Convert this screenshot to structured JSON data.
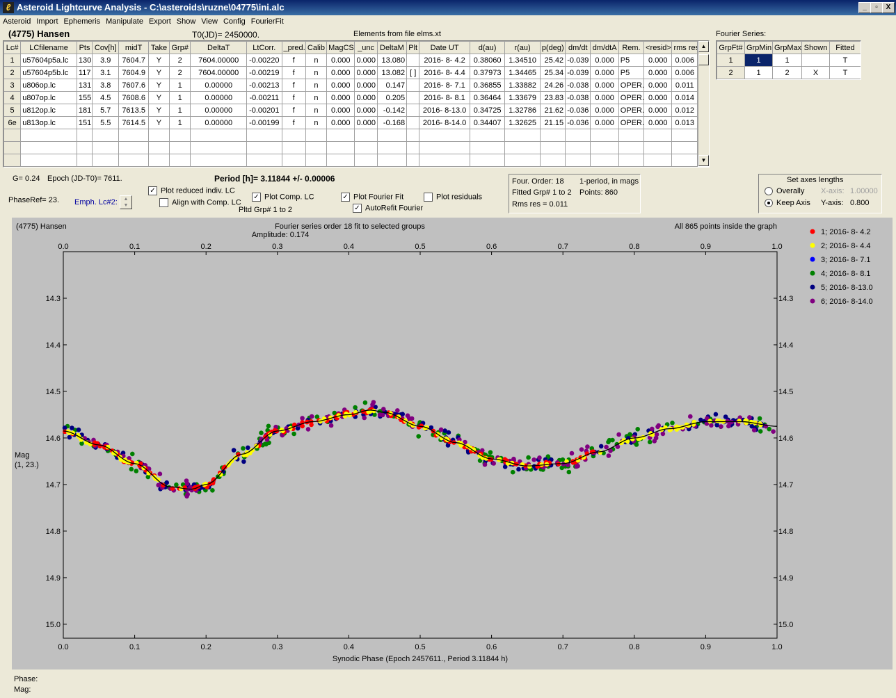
{
  "window": {
    "title": "Asteroid Lightcurve Analysis - C:\\asteroids\\ruzne\\04775\\ini.alc",
    "icon": "app-icon",
    "min": "_",
    "max": "▫",
    "close": "X"
  },
  "menu": [
    "Asteroid",
    "Import",
    "Ephemeris",
    "Manipulate",
    "Export",
    "Show",
    "View",
    "Config",
    "FourierFit"
  ],
  "header": {
    "asteroid": "(4775) Hansen",
    "t0": "T0(JD)= 2450000.",
    "elements": "Elements from file elms.xt"
  },
  "lc_table": {
    "columns": [
      "Lc#",
      "LCfilename",
      "Pts",
      "Cov[h]",
      "midT",
      "Take",
      "Grp#",
      "DeltaT",
      "LtCorr.",
      "_pred.",
      "Calib",
      "MagCS",
      "_unc",
      "DeltaM",
      "Plt",
      "Date UT",
      "d(au)",
      "r(au)",
      "p(deg)",
      "dm/dt",
      "dm/dtA",
      "Rem.",
      "<resid>",
      "rms res"
    ],
    "rows": [
      [
        "1",
        "u57604p5a.lc",
        "130",
        "3.9",
        "7604.7",
        "Y",
        "2",
        "7604.00000",
        "-0.00220",
        "f",
        "n",
        "0.000",
        "0.000",
        "13.080",
        "",
        "2016- 8- 4.2",
        "0.38060",
        "1.34510",
        "25.42",
        "-0.039",
        "0.000",
        "P5",
        "0.000",
        "0.006"
      ],
      [
        "2",
        "u57604p5b.lc",
        "117",
        "3.1",
        "7604.9",
        "Y",
        "2",
        "7604.00000",
        "-0.00219",
        "f",
        "n",
        "0.000",
        "0.000",
        "13.082",
        "[ ]",
        "2016- 8- 4.4",
        "0.37973",
        "1.34465",
        "25.34",
        "-0.039",
        "0.000",
        "P5",
        "0.000",
        "0.006"
      ],
      [
        "3",
        "u806op.lc",
        "131",
        "3.8",
        "7607.6",
        "Y",
        "1",
        "0.00000",
        "-0.00213",
        "f",
        "n",
        "0.000",
        "0.000",
        "0.147",
        "",
        "2016- 8- 7.1",
        "0.36855",
        "1.33882",
        "24.26",
        "-0.038",
        "0.000",
        "OPER.",
        "0.000",
        "0.011"
      ],
      [
        "4",
        "u807op.lc",
        "155",
        "4.5",
        "7608.6",
        "Y",
        "1",
        "0.00000",
        "-0.00211",
        "f",
        "n",
        "0.000",
        "0.000",
        "0.205",
        "",
        "2016- 8- 8.1",
        "0.36464",
        "1.33679",
        "23.83",
        "-0.038",
        "0.000",
        "OPER.",
        "0.000",
        "0.014"
      ],
      [
        "5",
        "u812op.lc",
        "181",
        "5.7",
        "7613.5",
        "Y",
        "1",
        "0.00000",
        "-0.00201",
        "f",
        "n",
        "0.000",
        "0.000",
        "-0.142",
        "",
        "2016- 8-13.0",
        "0.34725",
        "1.32786",
        "21.62",
        "-0.036",
        "0.000",
        "OPER.",
        "0.000",
        "0.012"
      ],
      [
        "6e",
        "u813op.lc",
        "151",
        "5.5",
        "7614.5",
        "Y",
        "1",
        "0.00000",
        "-0.00199",
        "f",
        "n",
        "0.000",
        "0.000",
        "-0.168",
        "",
        "2016- 8-14.0",
        "0.34407",
        "1.32625",
        "21.15",
        "-0.036",
        "0.000",
        "OPER.",
        "0.000",
        "0.013"
      ]
    ]
  },
  "fourier_series": {
    "label": "Fourier Series:",
    "columns": [
      "GrpFt#",
      "GrpMin",
      "GrpMax",
      "Shown",
      "Fitted"
    ],
    "rows": [
      [
        "1",
        "1",
        "1",
        "",
        "T"
      ],
      [
        "2",
        "1",
        "2",
        "X",
        "T"
      ]
    ]
  },
  "controls": {
    "g": "G= 0.24",
    "epoch": "Epoch (JD-T0)= 7611.",
    "period": "Period [h]= 3.11844 +/- 0.00006",
    "phaseref": "PhaseRef= 23.",
    "emph": "Emph. Lc#2:",
    "plot_reduced": "Plot reduced indiv. LC",
    "align_comp": "Align with Comp. LC",
    "plot_comp": "Plot Comp. LC",
    "plot_fourier": "Plot Fourier Fit",
    "plot_residuals": "Plot residuals",
    "autorefit": "AutoRefit Fourier",
    "pltd_grp": "Pltd Grp#  1   to   2",
    "check_mark": "✓"
  },
  "fit_info": {
    "order": "Four. Order: 18",
    "period_mode": "1-period, in mags",
    "fitted_grp": "Fitted Grp# 1 to 2",
    "points": "Points: 860",
    "rms": "Rms res     = 0.011"
  },
  "axes_box": {
    "title": "Set axes lengths",
    "overally": "Overally",
    "keep_axis": "Keep Axis",
    "x_label": "X-axis:",
    "x_value": "1.00000",
    "y_label": "Y-axis:",
    "y_value": "0.800"
  },
  "chart_data": {
    "type": "scatter",
    "title": "Fourier series order 18 fit to selected groups",
    "subtitle": "Amplitude: 0.174",
    "object_label": "(4775) Hansen",
    "points_note": "All 865 points inside the graph",
    "xlabel": "Synodic Phase (Epoch 2457611., Period 3.11844 h)",
    "ylabel": "Mag",
    "ylabel2": "(1, 23.)",
    "xlim": [
      0.0,
      1.0
    ],
    "ylim": [
      14.2,
      15.03
    ],
    "y_inverted": true,
    "x_ticks": [
      "0.0",
      "0.1",
      "0.2",
      "0.3",
      "0.4",
      "0.5",
      "0.6",
      "0.7",
      "0.8",
      "0.9",
      "1.0"
    ],
    "y_ticks": [
      "14.3",
      "14.4",
      "14.5",
      "14.6",
      "14.7",
      "14.8",
      "14.9",
      "15.0"
    ],
    "fit_curve": {
      "x": [
        0.0,
        0.05,
        0.1,
        0.15,
        0.18,
        0.2,
        0.25,
        0.3,
        0.35,
        0.4,
        0.43,
        0.45,
        0.5,
        0.55,
        0.6,
        0.65,
        0.7,
        0.75,
        0.8,
        0.85,
        0.9,
        0.95,
        1.0
      ],
      "y": [
        14.585,
        14.615,
        14.655,
        14.705,
        14.71,
        14.7,
        14.635,
        14.585,
        14.565,
        14.55,
        14.54,
        14.545,
        14.575,
        14.61,
        14.645,
        14.66,
        14.655,
        14.63,
        14.6,
        14.58,
        14.565,
        14.565,
        14.575
      ]
    },
    "series": [
      {
        "name": "1; 2016- 8- 4.2",
        "color": "#ff0000"
      },
      {
        "name": "2; 2016- 8- 4.4",
        "color": "#ffff00"
      },
      {
        "name": "3; 2016- 8- 7.1",
        "color": "#0000ff"
      },
      {
        "name": "4; 2016- 8- 8.1",
        "color": "#008000"
      },
      {
        "name": "5; 2016- 8-13.0",
        "color": "#000080"
      },
      {
        "name": "6; 2016- 8-14.0",
        "color": "#800080"
      }
    ]
  },
  "status": {
    "phase": "Phase:",
    "mag": "Mag:"
  }
}
